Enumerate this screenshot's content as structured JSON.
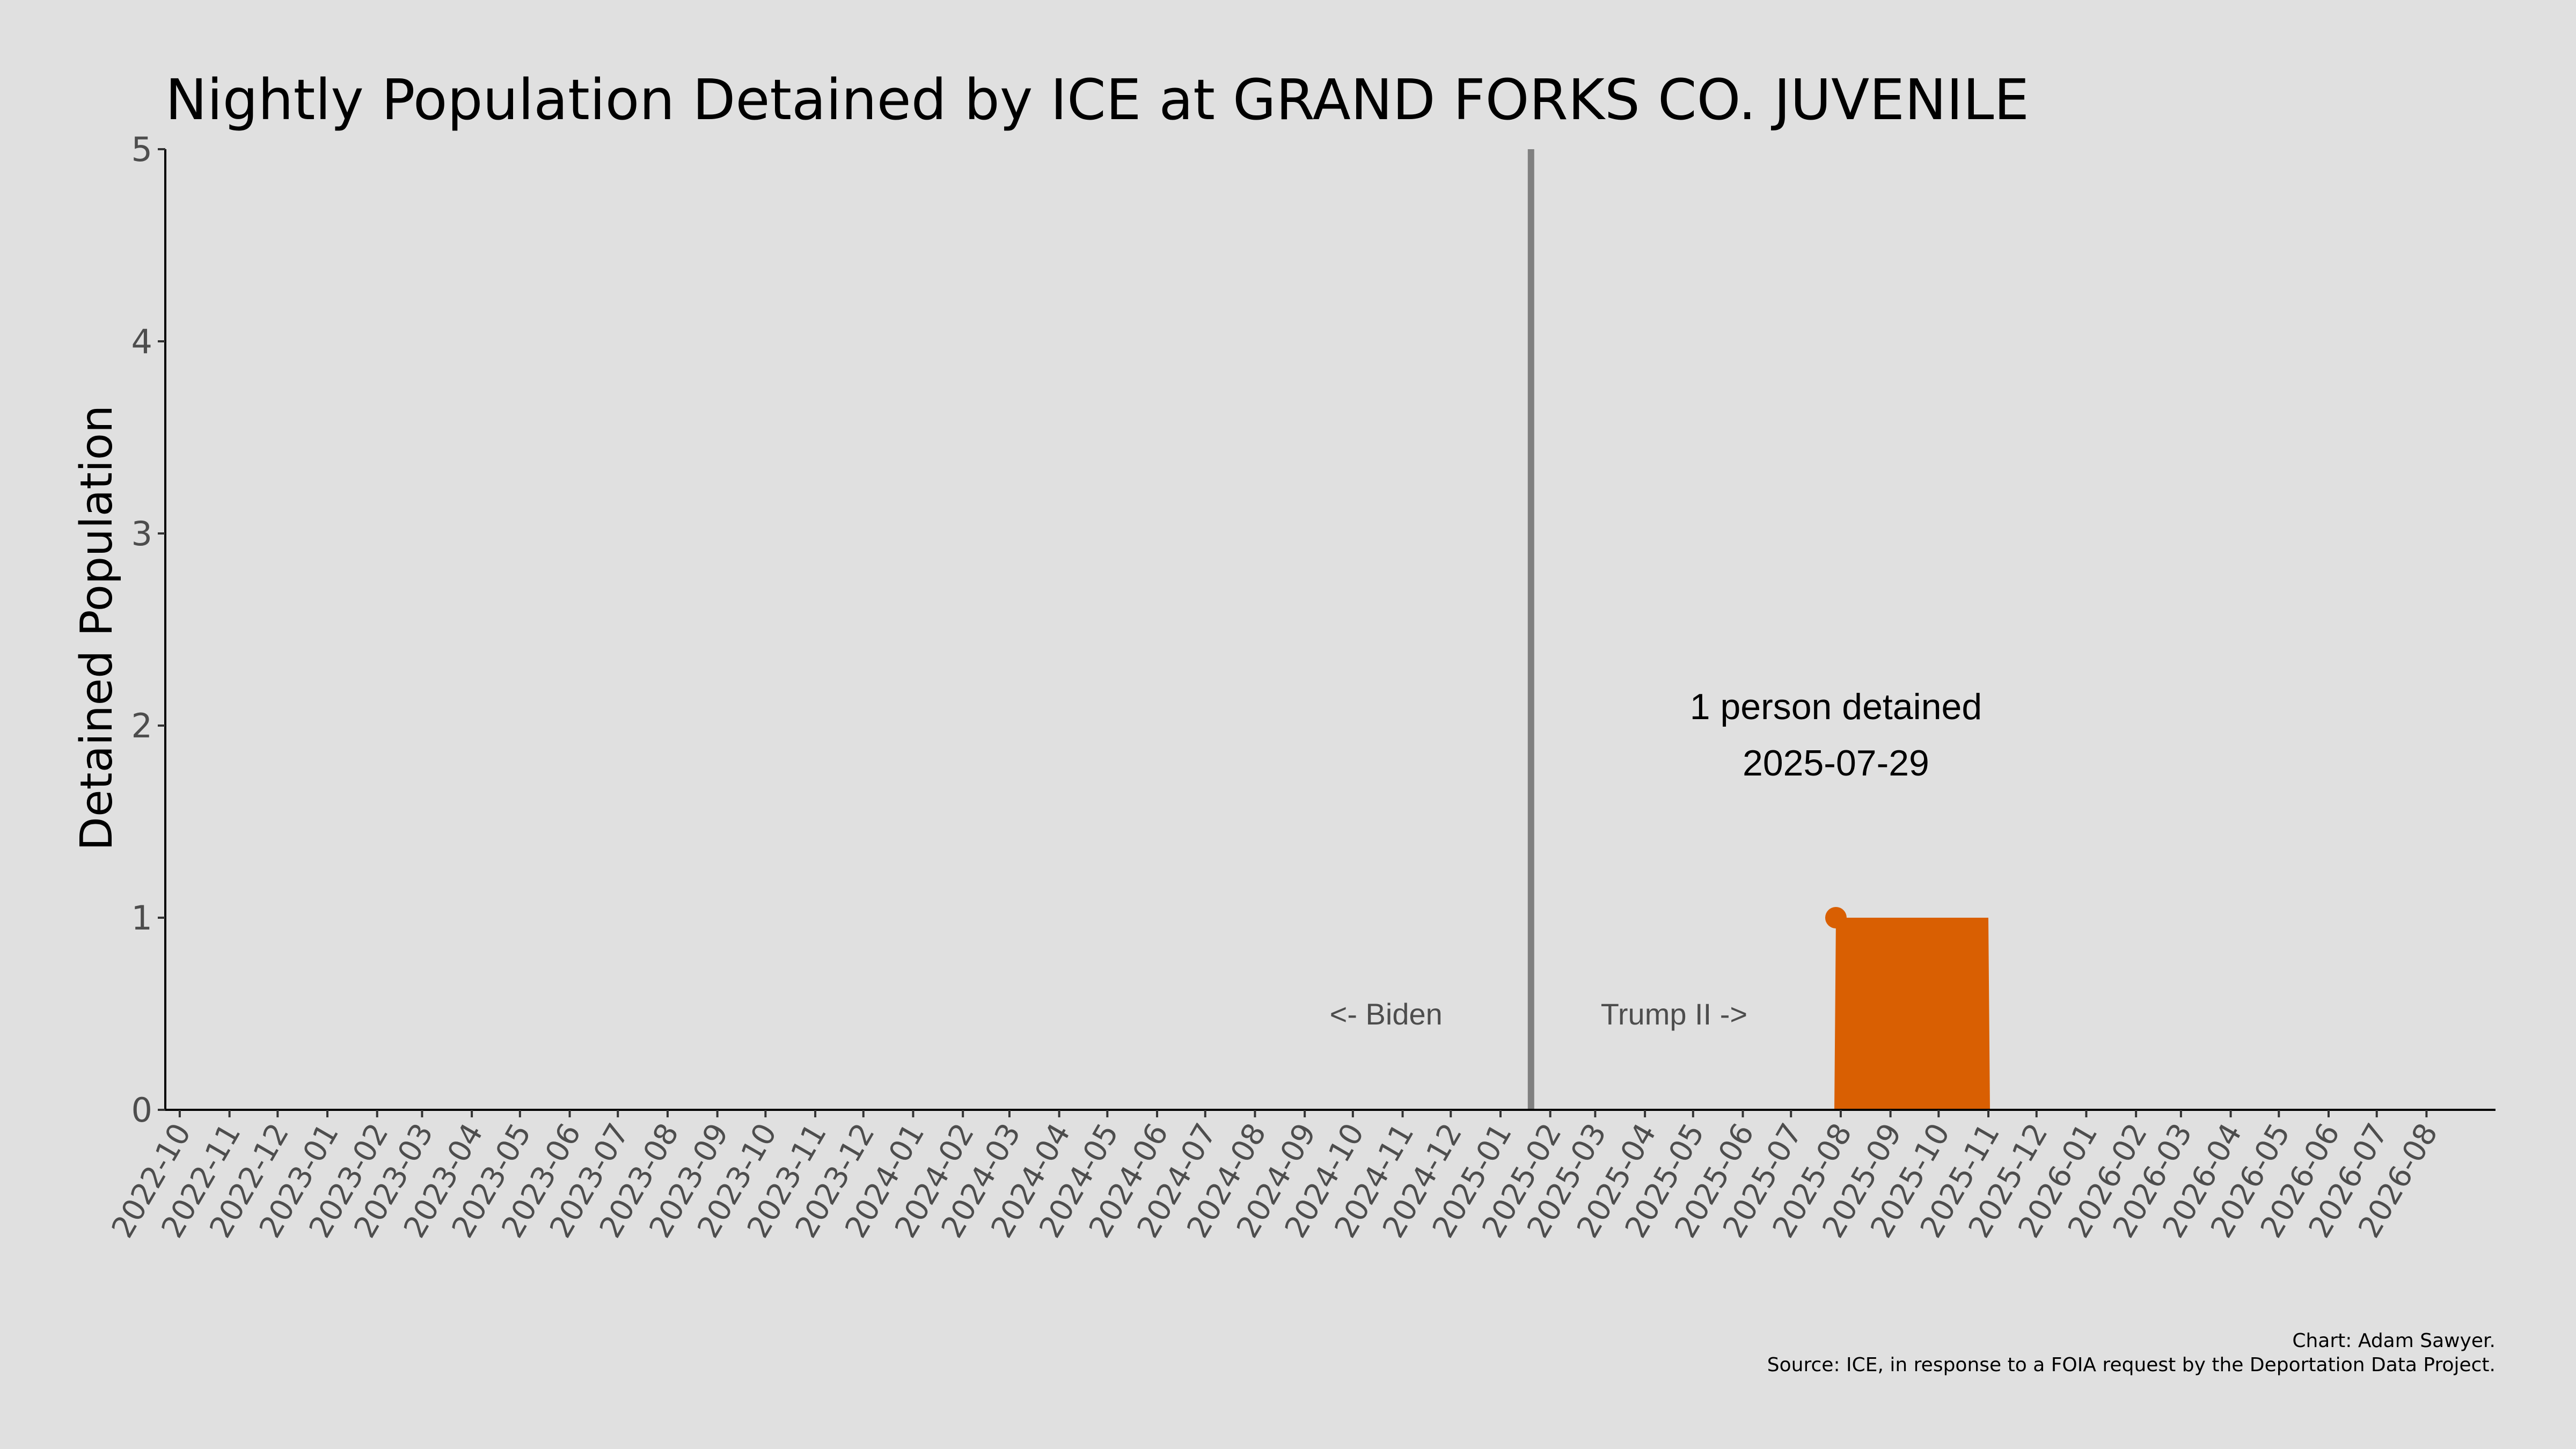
{
  "chart_data": {
    "type": "area",
    "title": "Nightly Population Detained by ICE at GRAND FORKS CO. JUVENILE",
    "xlabel": "",
    "ylabel": "Detained Population",
    "ylim": [
      0,
      5
    ],
    "yticks": [
      0,
      1,
      2,
      3,
      4,
      5
    ],
    "xlim": [
      "2022-09-22",
      "2026-09-13"
    ],
    "xticks": [
      "2022-10",
      "2022-11",
      "2022-12",
      "2023-01",
      "2023-02",
      "2023-03",
      "2023-04",
      "2023-05",
      "2023-06",
      "2023-07",
      "2023-08",
      "2023-09",
      "2023-10",
      "2023-11",
      "2023-12",
      "2024-01",
      "2024-02",
      "2024-03",
      "2024-04",
      "2024-05",
      "2024-06",
      "2024-07",
      "2024-08",
      "2024-09",
      "2024-10",
      "2024-11",
      "2024-12",
      "2025-01",
      "2025-02",
      "2025-03",
      "2025-04",
      "2025-05",
      "2025-06",
      "2025-07",
      "2025-08",
      "2025-09",
      "2025-10",
      "2025-11",
      "2025-12",
      "2026-01",
      "2026-02",
      "2026-03",
      "2026-04",
      "2026-05",
      "2026-06",
      "2026-07",
      "2026-08"
    ],
    "grid": false,
    "color": "#d95f02",
    "series": [
      {
        "x": [
          "2025-07-28",
          "2025-07-29",
          "2025-11-01",
          "2025-11-02"
        ],
        "y": [
          0,
          1,
          1,
          0
        ]
      }
    ],
    "highlight_point": {
      "x": "2025-07-29",
      "y": 1
    },
    "annotation": {
      "line1": "1 person detained",
      "line2": "2025-07-29",
      "x": "2025-07-29",
      "y": 1.95
    },
    "divider": {
      "x": "2025-01-20",
      "color": "#808080",
      "left_label": "<- Biden",
      "right_label": "Trump II ->",
      "label_y": 0.5
    },
    "caption": {
      "line1": "Chart: Adam Sawyer.",
      "line2": "Source: ICE, in response to a FOIA request by the Deportation Data Project."
    }
  }
}
